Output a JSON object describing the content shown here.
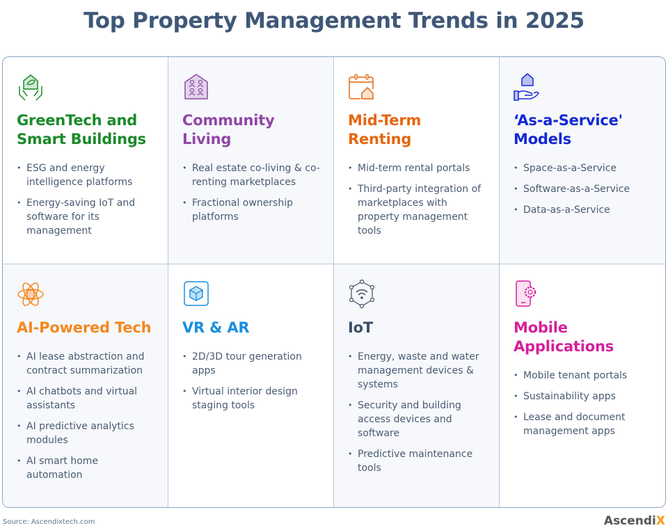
{
  "title": "Top Property Management Trends in 2025",
  "cards": [
    {
      "heading": "GreenTech and Smart Buildings",
      "color": "#1a8a2a",
      "icon": "leaf-house-hands-icon",
      "items": [
        "ESG and energy intelligence platforms",
        "Energy-saving IoT and software for its management"
      ]
    },
    {
      "heading": "Community Living",
      "color": "#9146a6",
      "icon": "community-house-icon",
      "items": [
        "Real estate co-living & co-renting marketplaces",
        "Fractional ownership platforms"
      ]
    },
    {
      "heading": "Mid-Term Renting",
      "color": "#e5670f",
      "icon": "calendar-house-icon",
      "items": [
        "Mid-term rental portals",
        "Third-party integration of marketplaces with property management tools"
      ]
    },
    {
      "heading": "‘As-a-Service' Models",
      "color": "#1428d4",
      "icon": "hand-house-icon",
      "items": [
        "Space-as-a-Service",
        "Software-as-a-Service",
        "Data-as-a-Service"
      ]
    },
    {
      "heading": "AI-Powered Tech",
      "color": "#f5871f",
      "icon": "atom-database-icon",
      "items": [
        "AI lease abstraction and contract summarization",
        "AI chatbots and virtual assistants",
        "AI predictive analytics modules",
        "AI smart home automation"
      ]
    },
    {
      "heading": "VR & AR",
      "color": "#1a8fe0",
      "icon": "cube-screen-icon",
      "items": [
        "2D/3D tour generation apps",
        "Virtual interior design staging tools"
      ]
    },
    {
      "heading": "IoT",
      "color": "#3c5068",
      "icon": "network-wifi-icon",
      "items": [
        "Energy, waste and water management devices & systems",
        "Security and building access devices and software",
        "Predictive maintenance tools"
      ]
    },
    {
      "heading": "Mobile Applications",
      "color": "#d4209a",
      "icon": "phone-gear-icon",
      "items": [
        "Mobile tenant portals",
        "Sustainability apps",
        "Lease and document management apps"
      ]
    }
  ],
  "source": "Source:  Ascendixtech.com",
  "logo": "Ascendix"
}
